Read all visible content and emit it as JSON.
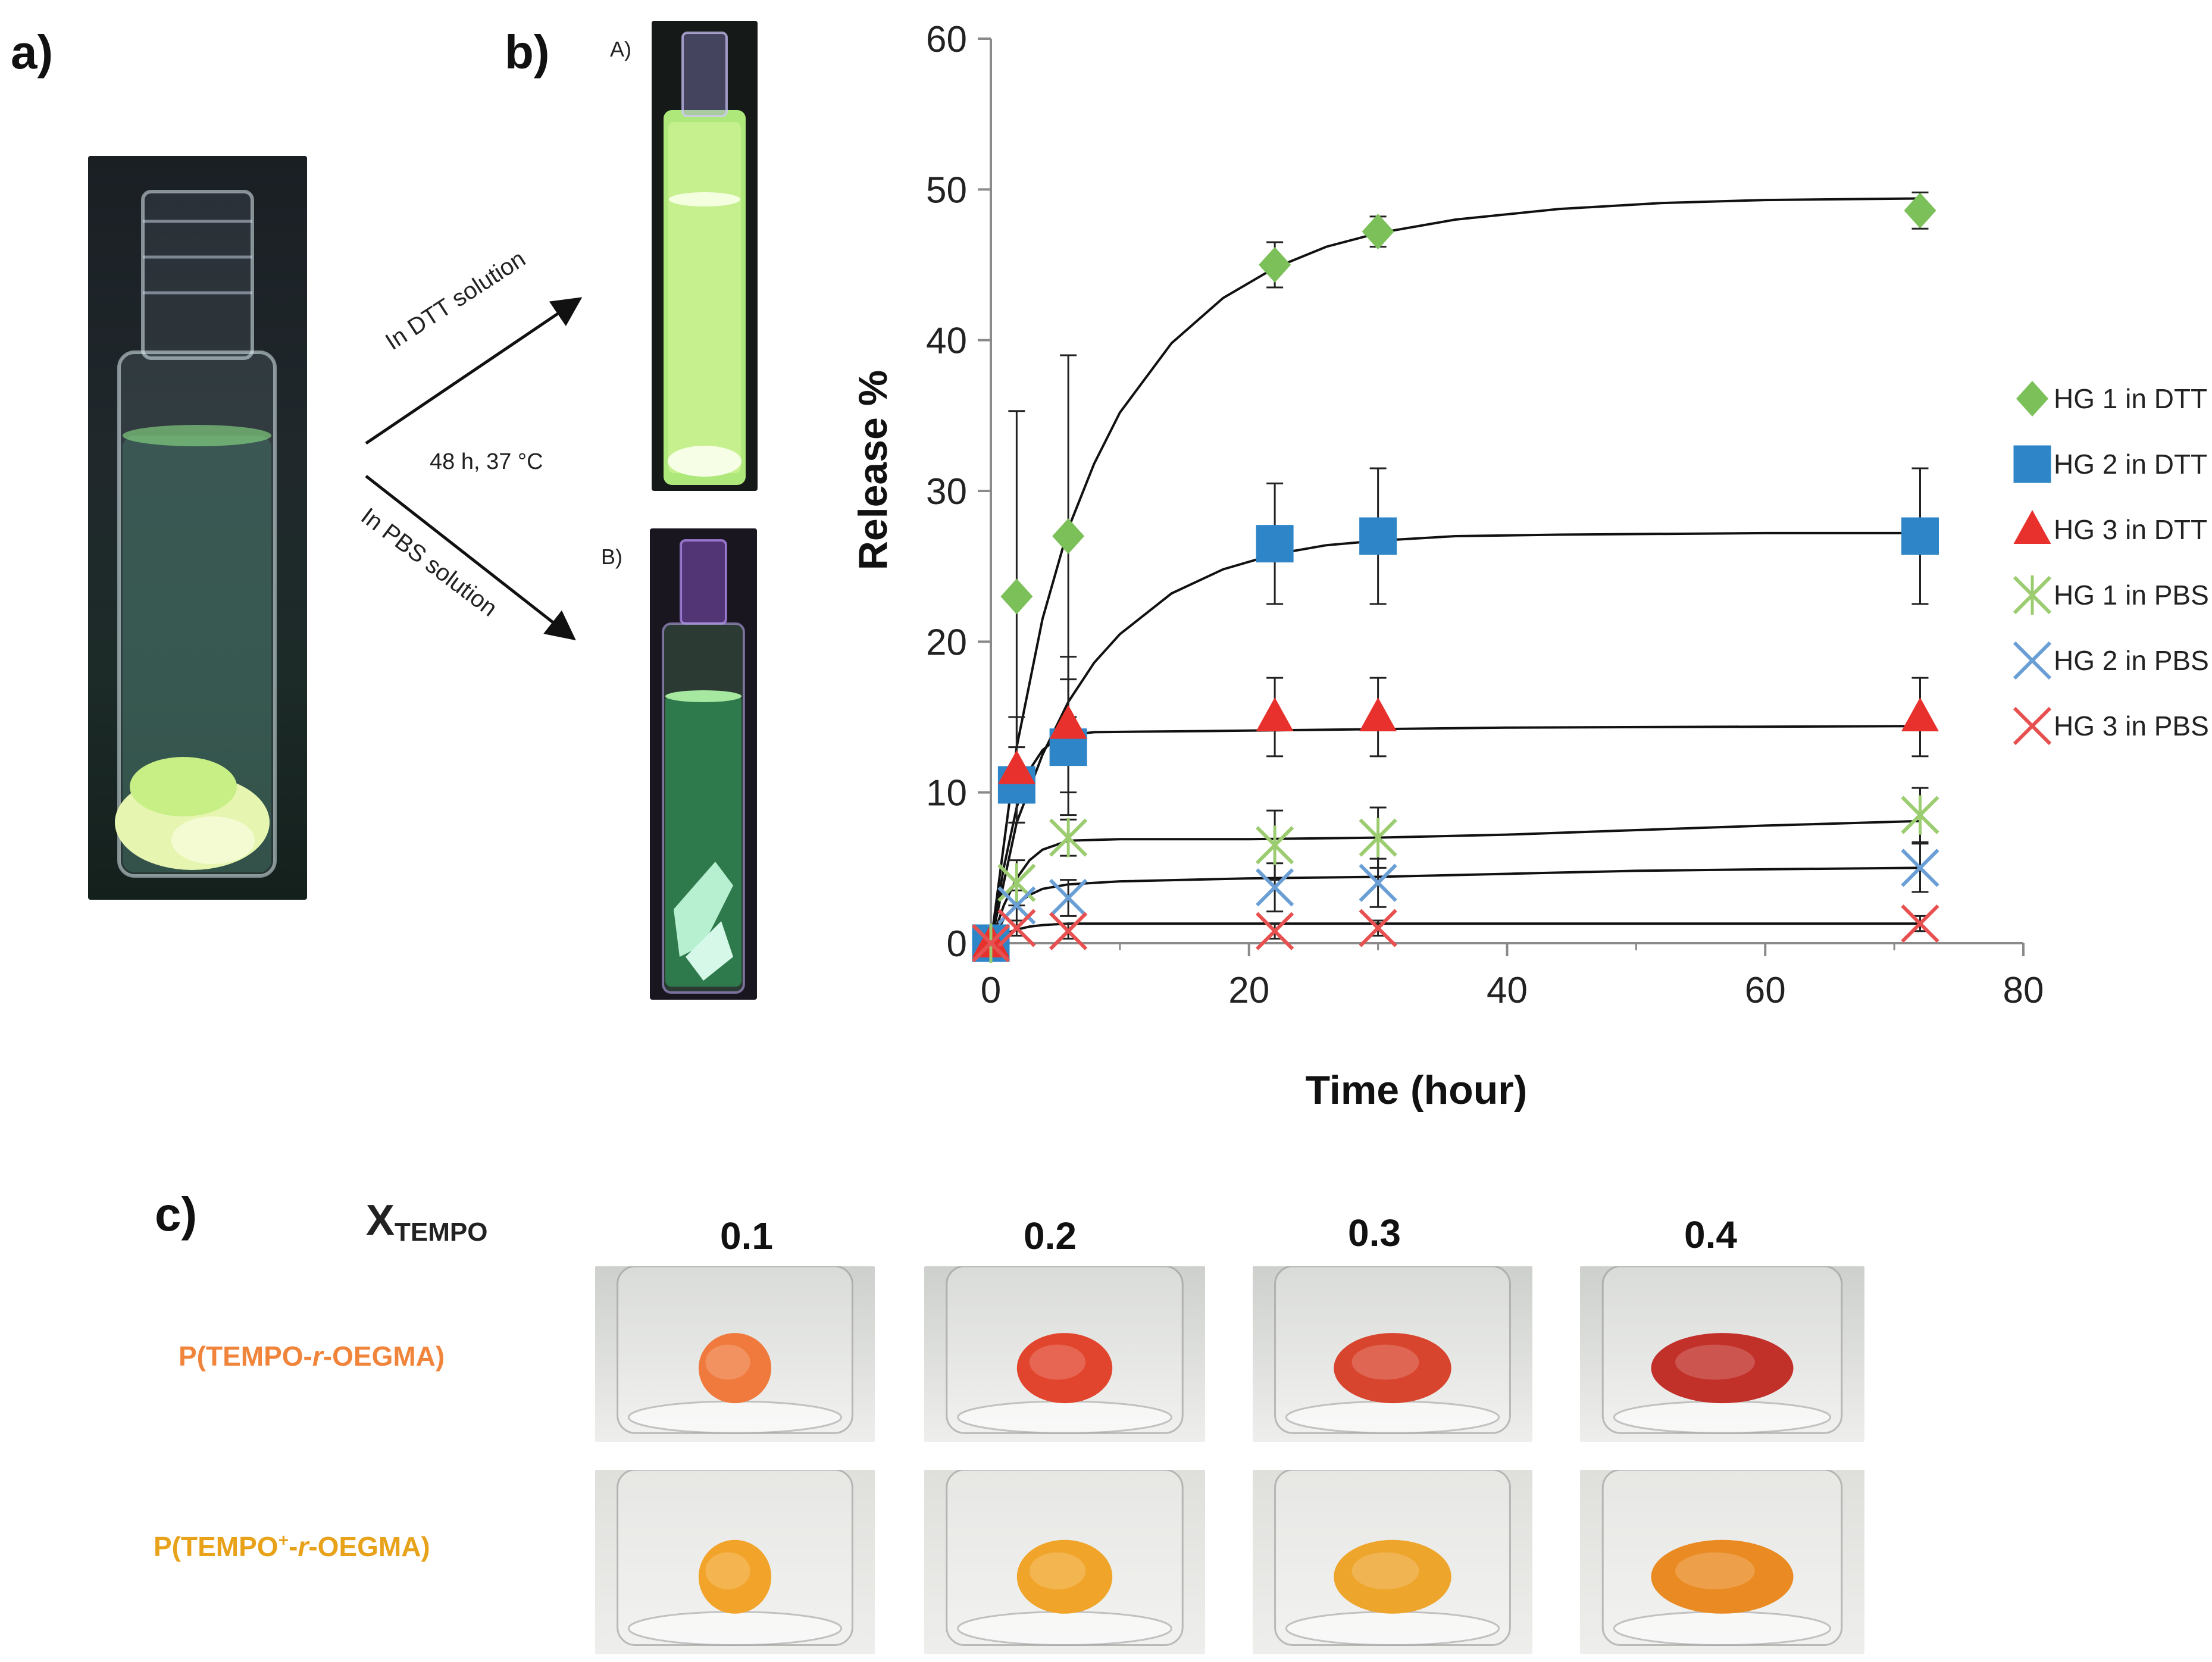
{
  "panels": {
    "a": {
      "label": "a)"
    },
    "b": {
      "label": "b)",
      "sublabel_A": "A)",
      "sublabel_B": "B)",
      "arrow_top_text": "In DTT solution",
      "arrow_mid_text": "48 h, 37 °C",
      "arrow_bottom_text": "In PBS solution"
    },
    "c": {
      "label": "c)",
      "x_symbol": "X",
      "x_subscript": "TEMPO",
      "values": [
        "0.1",
        "0.2",
        "0.3",
        "0.4"
      ],
      "row1_label": "P(TEMPO-r-OEGMA)",
      "row1_prefix": "P(TEMPO-",
      "row1_italic": "r",
      "row1_suffix": "-OEGMA)",
      "row2_prefix": "P(TEMPO",
      "row2_sup": "+",
      "row2_mid": "-",
      "row2_italic": "r",
      "row2_suffix": "-OEGMA)",
      "row1_color": "#f0843a",
      "row2_color": "#e8a21a"
    }
  },
  "chart_data": {
    "type": "scatter",
    "title": "",
    "xlabel": "Time (hour)",
    "ylabel": "Release %",
    "xlim": [
      0,
      80
    ],
    "ylim": [
      0,
      60
    ],
    "xticks": [
      0,
      20,
      40,
      60,
      80
    ],
    "yticks": [
      0,
      10,
      20,
      30,
      40,
      50,
      60
    ],
    "legend_position": "right",
    "series": [
      {
        "name": "HG 1 in DTT",
        "marker": "diamond",
        "color": "#7cc05a",
        "points": [
          {
            "x": 0,
            "y": 0
          },
          {
            "x": 2,
            "y": 23
          },
          {
            "x": 6,
            "y": 27
          },
          {
            "x": 22,
            "y": 45
          },
          {
            "x": 30,
            "y": 47.2
          },
          {
            "x": 72,
            "y": 48.6
          }
        ],
        "errors": [
          0,
          12.3,
          12,
          1.5,
          1,
          1.2
        ],
        "fit": [
          [
            0,
            0
          ],
          [
            2,
            13
          ],
          [
            4,
            21.5
          ],
          [
            6,
            27.5
          ],
          [
            8,
            31.8
          ],
          [
            10,
            35.2
          ],
          [
            14,
            39.8
          ],
          [
            18,
            42.8
          ],
          [
            22,
            44.8
          ],
          [
            26,
            46.2
          ],
          [
            30,
            47.1
          ],
          [
            36,
            48
          ],
          [
            44,
            48.7
          ],
          [
            52,
            49.1
          ],
          [
            60,
            49.3
          ],
          [
            72,
            49.4
          ]
        ]
      },
      {
        "name": "HG 2 in DTT",
        "marker": "square",
        "color": "#2e86c8",
        "points": [
          {
            "x": 0,
            "y": 0
          },
          {
            "x": 2,
            "y": 10.5
          },
          {
            "x": 6,
            "y": 13
          },
          {
            "x": 22,
            "y": 26.5
          },
          {
            "x": 30,
            "y": 27
          },
          {
            "x": 72,
            "y": 27
          }
        ],
        "errors": [
          0,
          2.5,
          4.5,
          4,
          4.5,
          4.5
        ],
        "fit": [
          [
            0,
            0
          ],
          [
            2,
            8
          ],
          [
            4,
            12.5
          ],
          [
            6,
            16
          ],
          [
            8,
            18.6
          ],
          [
            10,
            20.5
          ],
          [
            14,
            23.2
          ],
          [
            18,
            24.8
          ],
          [
            22,
            25.8
          ],
          [
            26,
            26.4
          ],
          [
            30,
            26.7
          ],
          [
            36,
            27
          ],
          [
            44,
            27.1
          ],
          [
            60,
            27.2
          ],
          [
            72,
            27.2
          ]
        ]
      },
      {
        "name": "HG 3 in DTT",
        "marker": "triangle",
        "color": "#e8302c",
        "points": [
          {
            "x": 0,
            "y": 0
          },
          {
            "x": 2,
            "y": 11.5
          },
          {
            "x": 6,
            "y": 14.5
          },
          {
            "x": 22,
            "y": 15
          },
          {
            "x": 30,
            "y": 15
          },
          {
            "x": 72,
            "y": 15
          }
        ],
        "errors": [
          0,
          3.5,
          4.5,
          2.6,
          2.6,
          2.6
        ],
        "fit": [
          [
            0,
            0
          ],
          [
            1,
            5
          ],
          [
            2,
            9
          ],
          [
            3,
            11.5
          ],
          [
            4,
            12.8
          ],
          [
            5,
            13.5
          ],
          [
            6,
            13.8
          ],
          [
            8,
            14
          ],
          [
            20,
            14.1
          ],
          [
            40,
            14.3
          ],
          [
            72,
            14.4
          ]
        ]
      },
      {
        "name": "HG 1 in PBS",
        "marker": "star-x",
        "color": "#9ccc70",
        "points": [
          {
            "x": 0,
            "y": 0
          },
          {
            "x": 2,
            "y": 4
          },
          {
            "x": 6,
            "y": 7
          },
          {
            "x": 22,
            "y": 6.5
          },
          {
            "x": 30,
            "y": 7
          },
          {
            "x": 72,
            "y": 8.5
          }
        ],
        "errors": [
          0,
          1.5,
          1.2,
          2.3,
          2,
          1.8
        ],
        "fit": [
          [
            0,
            0
          ],
          [
            1,
            2.5
          ],
          [
            2,
            4.3
          ],
          [
            3,
            5.5
          ],
          [
            4,
            6.2
          ],
          [
            6,
            6.8
          ],
          [
            10,
            6.9
          ],
          [
            20,
            6.9
          ],
          [
            30,
            7
          ],
          [
            40,
            7.2
          ],
          [
            50,
            7.5
          ],
          [
            60,
            7.8
          ],
          [
            72,
            8.1
          ]
        ]
      },
      {
        "name": "HG 2 in PBS",
        "marker": "x",
        "color": "#6a9fd6",
        "points": [
          {
            "x": 0,
            "y": 0
          },
          {
            "x": 2,
            "y": 2.5
          },
          {
            "x": 6,
            "y": 3
          },
          {
            "x": 22,
            "y": 3.7
          },
          {
            "x": 30,
            "y": 4
          },
          {
            "x": 72,
            "y": 5
          }
        ],
        "errors": [
          0,
          1,
          1.2,
          1.6,
          1.6,
          1.6
        ],
        "fit": [
          [
            0,
            0
          ],
          [
            1,
            1.6
          ],
          [
            2,
            2.6
          ],
          [
            3,
            3.2
          ],
          [
            4,
            3.6
          ],
          [
            6,
            3.9
          ],
          [
            10,
            4.1
          ],
          [
            20,
            4.3
          ],
          [
            30,
            4.4
          ],
          [
            40,
            4.6
          ],
          [
            50,
            4.8
          ],
          [
            60,
            4.9
          ],
          [
            72,
            5
          ]
        ]
      },
      {
        "name": "HG 3 in PBS",
        "marker": "x",
        "color": "#e85050",
        "points": [
          {
            "x": 0,
            "y": 0
          },
          {
            "x": 2,
            "y": 1
          },
          {
            "x": 6,
            "y": 0.8
          },
          {
            "x": 22,
            "y": 0.8
          },
          {
            "x": 30,
            "y": 1
          },
          {
            "x": 72,
            "y": 1.3
          }
        ],
        "errors": [
          0,
          0.5,
          0.5,
          0.5,
          0.5,
          0.5
        ],
        "fit": [
          [
            0,
            0
          ],
          [
            1,
            0.6
          ],
          [
            2,
            0.9
          ],
          [
            3,
            1.1
          ],
          [
            4,
            1.2
          ],
          [
            6,
            1.3
          ],
          [
            20,
            1.3
          ],
          [
            40,
            1.3
          ],
          [
            60,
            1.3
          ],
          [
            72,
            1.3
          ]
        ]
      }
    ]
  }
}
